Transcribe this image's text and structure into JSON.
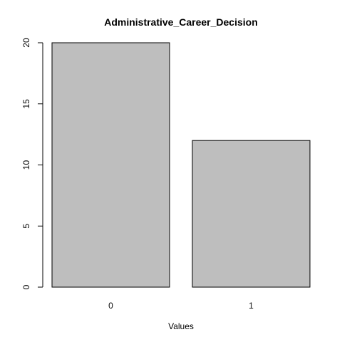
{
  "chart_data": {
    "type": "bar",
    "title": "Administrative_Career_Decision",
    "xlabel": "Values",
    "ylabel": "",
    "categories": [
      "0",
      "1"
    ],
    "values": [
      20,
      12
    ],
    "ylim": [
      0,
      20
    ],
    "yticks": [
      0,
      5,
      10,
      15,
      20
    ],
    "bar_color": "#bebebe",
    "grid": false,
    "legend": "none"
  }
}
